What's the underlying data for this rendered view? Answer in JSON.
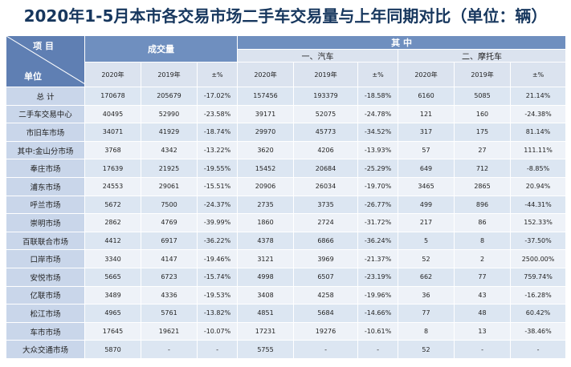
{
  "title": "2020年1-5月本市各交易市场二手车交易量与上年同期对比（单位：辆）",
  "header": {
    "corner_top": "项 目",
    "corner_bottom": "单位",
    "group_total": "成交量",
    "group_of_which": "其 中",
    "sub_car": "一、汽车",
    "sub_moto": "二、摩托车",
    "col_2020": "2020年",
    "col_2019": "2019年",
    "col_pct": "±%"
  },
  "rows": [
    {
      "unit": "总 计",
      "c": [
        "170678",
        "205679",
        "-17.02%",
        "157456",
        "193379",
        "-18.58%",
        "6160",
        "5085",
        "21.14%"
      ]
    },
    {
      "unit": "二手车交易中心",
      "c": [
        "40495",
        "52990",
        "-23.58%",
        "39171",
        "52075",
        "-24.78%",
        "121",
        "160",
        "-24.38%"
      ]
    },
    {
      "unit": "市旧车市场",
      "c": [
        "34071",
        "41929",
        "-18.74%",
        "29970",
        "45773",
        "-34.52%",
        "317",
        "175",
        "81.14%"
      ]
    },
    {
      "unit": "其中:金山分市场",
      "c": [
        "3768",
        "4342",
        "-13.22%",
        "3620",
        "4206",
        "-13.93%",
        "57",
        "27",
        "111.11%"
      ]
    },
    {
      "unit": "奉庄市场",
      "c": [
        "17639",
        "21925",
        "-19.55%",
        "15452",
        "20684",
        "-25.29%",
        "649",
        "712",
        "-8.85%"
      ]
    },
    {
      "unit": "浦东市场",
      "c": [
        "24553",
        "29061",
        "-15.51%",
        "20906",
        "26034",
        "-19.70%",
        "3465",
        "2865",
        "20.94%"
      ]
    },
    {
      "unit": "呼兰市场",
      "c": [
        "5672",
        "7500",
        "-24.37%",
        "2735",
        "3735",
        "-26.77%",
        "499",
        "896",
        "-44.31%"
      ]
    },
    {
      "unit": "崇明市场",
      "c": [
        "2862",
        "4769",
        "-39.99%",
        "1860",
        "2724",
        "-31.72%",
        "217",
        "86",
        "152.33%"
      ]
    },
    {
      "unit": "百联联合市场",
      "c": [
        "4412",
        "6917",
        "-36.22%",
        "4378",
        "6866",
        "-36.24%",
        "5",
        "8",
        "-37.50%"
      ]
    },
    {
      "unit": "口岸市场",
      "c": [
        "3340",
        "4147",
        "-19.46%",
        "3121",
        "3969",
        "-21.37%",
        "52",
        "2",
        "2500.00%"
      ]
    },
    {
      "unit": "安悦市场",
      "c": [
        "5665",
        "6723",
        "-15.74%",
        "4998",
        "6507",
        "-23.19%",
        "662",
        "77",
        "759.74%"
      ]
    },
    {
      "unit": "亿联市场",
      "c": [
        "3489",
        "4336",
        "-19.53%",
        "3408",
        "4258",
        "-19.96%",
        "36",
        "43",
        "-16.28%"
      ]
    },
    {
      "unit": "松江市场",
      "c": [
        "4965",
        "5761",
        "-13.82%",
        "4851",
        "5684",
        "-14.66%",
        "77",
        "48",
        "60.42%"
      ]
    },
    {
      "unit": "车市市场",
      "c": [
        "17645",
        "19621",
        "-10.07%",
        "17231",
        "19276",
        "-10.61%",
        "8",
        "13",
        "-38.46%"
      ]
    },
    {
      "unit": "大众交通市场",
      "c": [
        "5870",
        "-",
        "-",
        "5755",
        "-",
        "-",
        "52",
        "-",
        "-"
      ]
    }
  ]
}
